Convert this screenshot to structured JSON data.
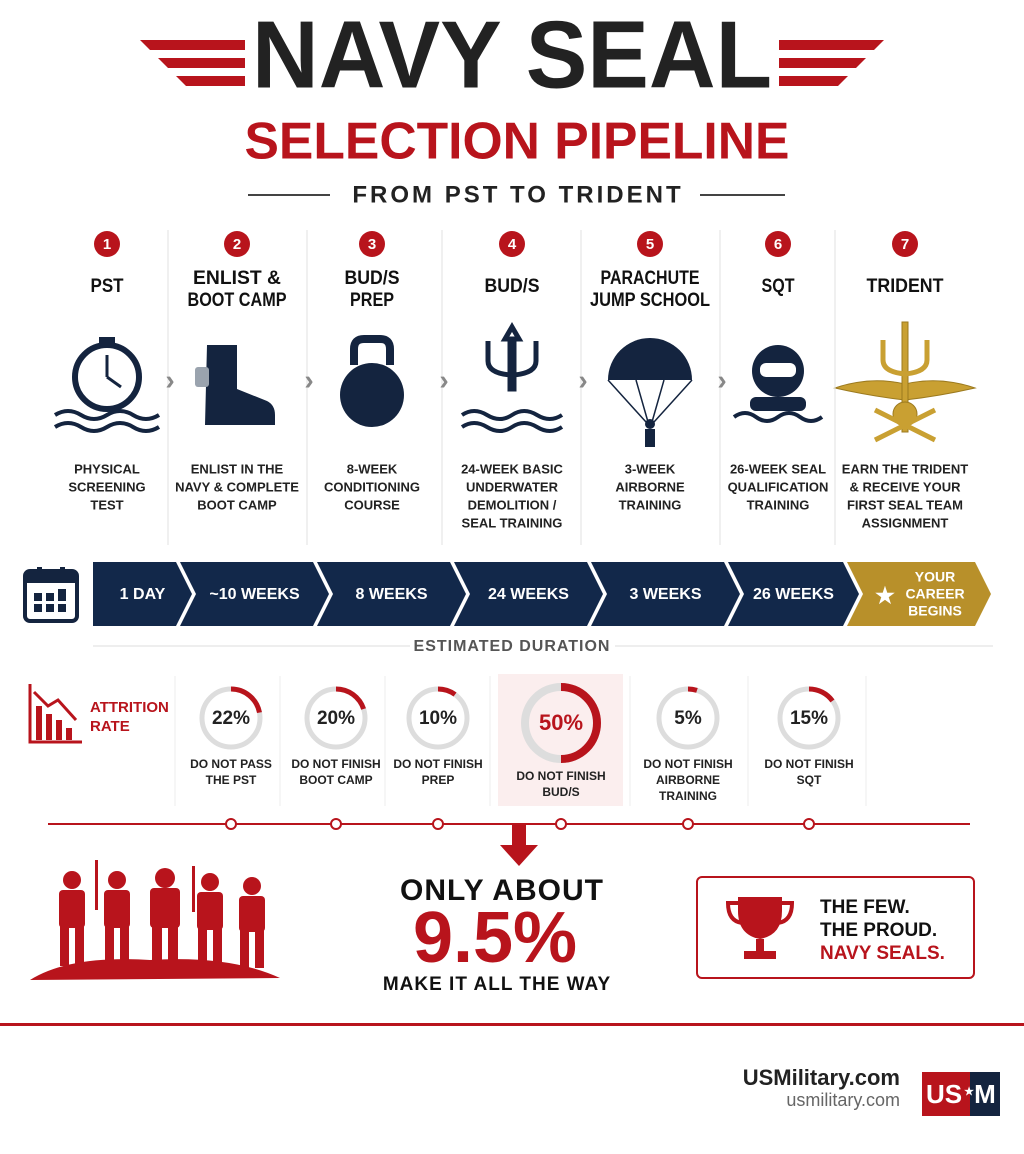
{
  "header": {
    "title": "NAVY SEAL",
    "subtitle": "SELECTION PIPELINE",
    "tagline": "FROM PST TO TRIDENT"
  },
  "stages": [
    {
      "number": "1",
      "name": [
        "PST"
      ],
      "description": [
        "PHYSICAL",
        "SCREENING",
        "TEST"
      ],
      "duration": [
        "1 DAY"
      ]
    },
    {
      "number": "2",
      "name": [
        "ENLIST &",
        "BOOT CAMP"
      ],
      "description": [
        "ENLIST IN THE",
        "NAVY & COMPLETE",
        "BOOT CAMP"
      ],
      "duration": [
        "~10 WEEKS"
      ]
    },
    {
      "number": "3",
      "name": [
        "BUD/S",
        "PREP"
      ],
      "description": [
        "8-WEEK",
        "CONDITIONING",
        "COURSE"
      ],
      "duration": [
        "8 WEEKS"
      ]
    },
    {
      "number": "4",
      "name": [
        "BUD/S"
      ],
      "description": [
        "24-WEEK BASIC",
        "UNDERWATER",
        "DEMOLITION /",
        "SEAL TRAINING"
      ],
      "duration": [
        "24 WEEKS"
      ]
    },
    {
      "number": "5",
      "name": [
        "PARACHUTE",
        "JUMP SCHOOL"
      ],
      "description": [
        "3-WEEK",
        "AIRBORNE",
        "TRAINING"
      ],
      "duration": [
        "3 WEEKS"
      ]
    },
    {
      "number": "6",
      "name": [
        "SQT"
      ],
      "description": [
        "26-WEEK SEAL",
        "QUALIFICATION",
        "TRAINING"
      ],
      "duration": [
        "26 WEEKS"
      ]
    },
    {
      "number": "7",
      "name": [
        "TRIDENT"
      ],
      "description": [
        "EARN THE TRIDENT",
        "& RECEIVE YOUR",
        "FIRST SEAL TEAM",
        "ASSIGNMENT"
      ],
      "duration": [
        "YOUR",
        "CAREER",
        "BEGINS"
      ]
    }
  ],
  "duration_label": "ESTIMATED DURATION",
  "attrition": {
    "label": [
      "ATTRITION",
      "RATE"
    ],
    "items": [
      {
        "value": 22,
        "value_label": "22%",
        "caption": [
          "DO NOT PASS",
          "THE PST"
        ]
      },
      {
        "value": 20,
        "value_label": "20%",
        "caption": [
          "DO NOT FINISH",
          "BOOT CAMP"
        ]
      },
      {
        "value": 10,
        "value_label": "10%",
        "caption": [
          "DO NOT FINISH",
          "PREP"
        ]
      },
      {
        "value": 50,
        "value_label": "50%",
        "caption": [
          "DO NOT FINISH",
          "BUD/S"
        ],
        "highlight": true
      },
      {
        "value": 5,
        "value_label": "5%",
        "caption": [
          "DO NOT FINISH",
          "AIRBORNE",
          "TRAINING"
        ]
      },
      {
        "value": 15,
        "value_label": "15%",
        "caption": [
          "DO NOT FINISH",
          "SQT"
        ]
      }
    ]
  },
  "summary": {
    "lead": "ONLY ABOUT",
    "value": 9.5,
    "value_label": "9.5%",
    "tail": "MAKE IT ALL THE WAY"
  },
  "motto": [
    "THE FEW.",
    "THE PROUD.",
    "NAVY SEALS."
  ],
  "footer": {
    "brand": "USMilitary.com",
    "url": "usmilitary.com",
    "logo_left": "US",
    "logo_right": "M"
  }
}
